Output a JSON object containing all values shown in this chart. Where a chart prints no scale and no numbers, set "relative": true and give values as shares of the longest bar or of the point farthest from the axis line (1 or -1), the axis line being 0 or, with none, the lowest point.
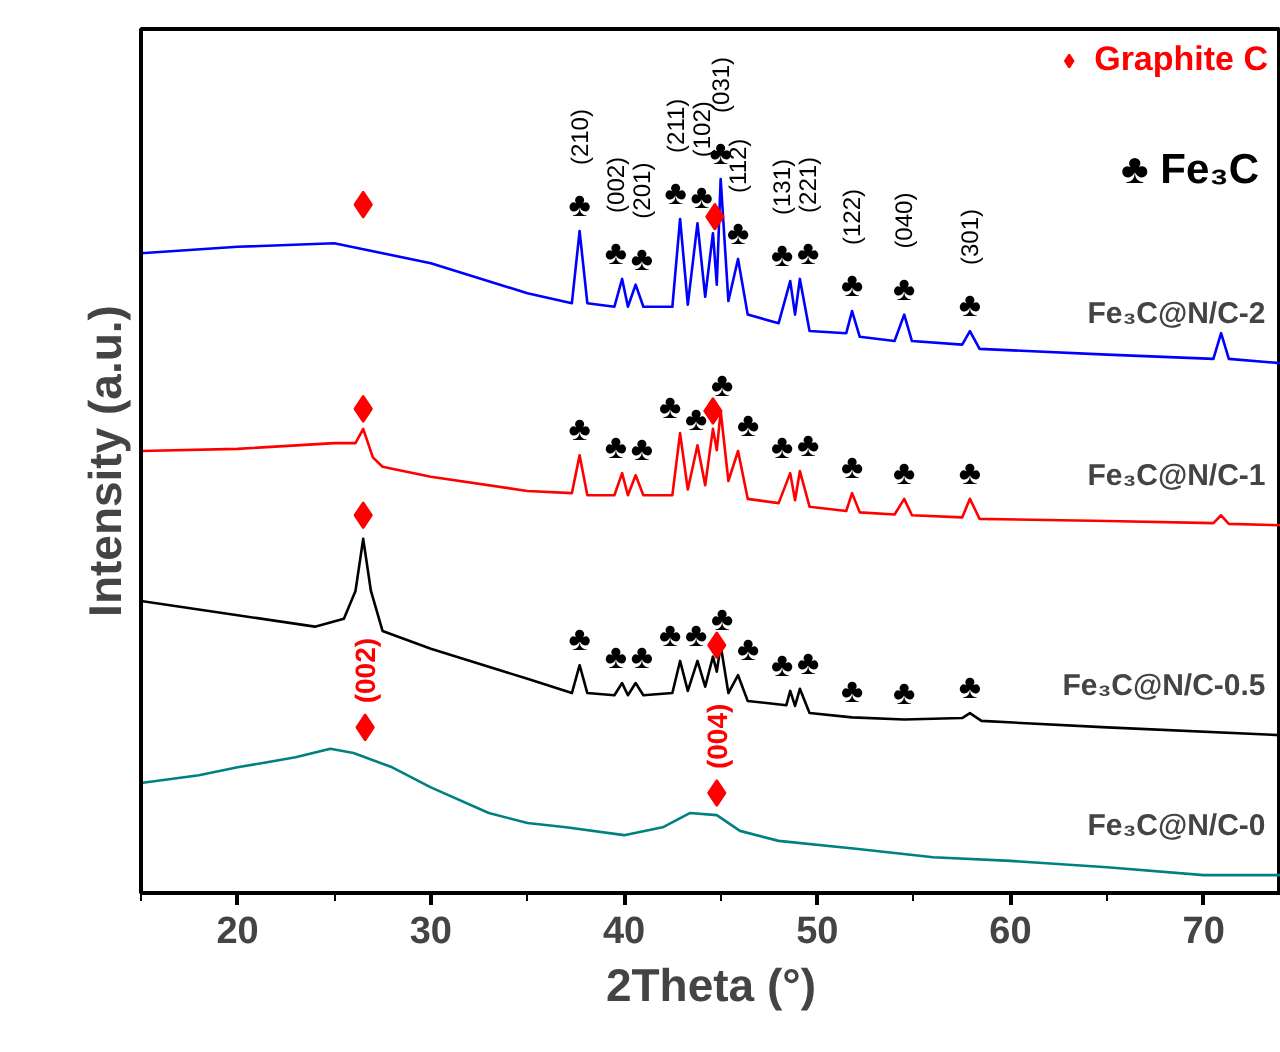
{
  "chart_data": {
    "type": "line",
    "relative": true,
    "xlabel": "2Theta (°)",
    "ylabel": "Intensity (a.u.)",
    "xlim": [
      15,
      74
    ],
    "xticks": [
      20,
      30,
      40,
      50,
      60,
      70
    ],
    "grid": false,
    "legend": "top right",
    "marker": "none",
    "series": [
      {
        "name": "Fe₃C@N/C-2",
        "color": "#0000ff",
        "x": [
          15,
          20,
          25,
          30,
          35,
          37.3,
          37.7,
          38.1,
          39.5,
          39.9,
          40.2,
          40.6,
          41,
          42.5,
          42.9,
          43.3,
          43.8,
          44.2,
          44.6,
          44.8,
          45.0,
          45.4,
          45.9,
          46.4,
          48,
          48.6,
          48.85,
          49.1,
          49.6,
          51.5,
          51.8,
          52.2,
          54,
          54.5,
          54.9,
          57.5,
          57.9,
          58.4,
          65,
          70.5,
          70.9,
          71.3,
          74
        ],
        "values": [
          0.896,
          0.905,
          0.91,
          0.882,
          0.84,
          0.826,
          0.927,
          0.826,
          0.821,
          0.86,
          0.821,
          0.852,
          0.821,
          0.821,
          0.944,
          0.824,
          0.938,
          0.835,
          0.924,
          0.852,
          1.0,
          0.829,
          0.888,
          0.81,
          0.798,
          0.857,
          0.81,
          0.86,
          0.787,
          0.784,
          0.815,
          0.779,
          0.773,
          0.81,
          0.773,
          0.768,
          0.787,
          0.762,
          0.754,
          0.748,
          0.784,
          0.748,
          0.742
        ]
      },
      {
        "name": "Fe₃C@N/C-1",
        "color": "#ff0000",
        "x": [
          15,
          20,
          25,
          26.1,
          26.5,
          27.0,
          27.5,
          30,
          35,
          37.3,
          37.7,
          38.1,
          39.5,
          39.9,
          40.2,
          40.6,
          41,
          42.5,
          42.9,
          43.3,
          43.8,
          44.2,
          44.6,
          44.8,
          45.0,
          45.4,
          45.9,
          46.4,
          48,
          48.6,
          48.85,
          49.1,
          49.6,
          51.5,
          51.8,
          52.2,
          54,
          54.5,
          54.9,
          57.5,
          57.9,
          58.4,
          65,
          70.5,
          70.9,
          71.3,
          74
        ],
        "values": [
          0.619,
          0.622,
          0.63,
          0.63,
          0.65,
          0.61,
          0.597,
          0.583,
          0.563,
          0.56,
          0.613,
          0.557,
          0.557,
          0.588,
          0.557,
          0.585,
          0.557,
          0.557,
          0.644,
          0.565,
          0.627,
          0.571,
          0.65,
          0.62,
          0.675,
          0.577,
          0.619,
          0.552,
          0.546,
          0.588,
          0.55,
          0.591,
          0.541,
          0.535,
          0.56,
          0.533,
          0.53,
          0.552,
          0.529,
          0.526,
          0.552,
          0.524,
          0.521,
          0.518,
          0.529,
          0.517,
          0.515
        ]
      },
      {
        "name": "Fe₃C@N/C-0.5",
        "color": "#000000",
        "x": [
          15,
          20,
          24,
          25.5,
          26.1,
          26.5,
          26.9,
          27.5,
          30,
          35,
          37.3,
          37.7,
          38.1,
          39.5,
          39.9,
          40.2,
          40.6,
          41,
          42.5,
          42.9,
          43.3,
          43.8,
          44.2,
          44.6,
          44.8,
          45.0,
          45.4,
          45.9,
          46.4,
          48.4,
          48.6,
          48.85,
          49.1,
          49.6,
          51.8,
          54.5,
          57.5,
          57.9,
          58.5,
          65,
          74
        ],
        "values": [
          0.409,
          0.389,
          0.373,
          0.384,
          0.423,
          0.496,
          0.423,
          0.367,
          0.342,
          0.3,
          0.28,
          0.319,
          0.28,
          0.277,
          0.294,
          0.277,
          0.294,
          0.277,
          0.28,
          0.325,
          0.283,
          0.325,
          0.289,
          0.331,
          0.31,
          0.347,
          0.28,
          0.305,
          0.269,
          0.263,
          0.283,
          0.262,
          0.286,
          0.252,
          0.246,
          0.243,
          0.245,
          0.252,
          0.241,
          0.232,
          0.221
        ]
      },
      {
        "name": "Fe₃C@N/C-0",
        "color": "#008080",
        "x": [
          15,
          18,
          20,
          23,
          24.8,
          26,
          28,
          30,
          33,
          35,
          37,
          40,
          42,
          43.4,
          44.8,
          46,
          48,
          52,
          56,
          60,
          65,
          70,
          74
        ],
        "values": [
          0.154,
          0.165,
          0.176,
          0.19,
          0.202,
          0.196,
          0.176,
          0.148,
          0.112,
          0.098,
          0.092,
          0.081,
          0.092,
          0.112,
          0.109,
          0.087,
          0.073,
          0.062,
          0.05,
          0.045,
          0.036,
          0.025,
          0.025
        ]
      },
      {
        "name": "Graphite C",
        "type": "scatter",
        "marker": "diamond",
        "color": "#ff0000",
        "x": [
          26.5,
          44.7,
          26.5,
          44.6,
          26.5,
          44.8,
          26.6,
          44.8
        ],
        "values": [
          0.964,
          0.947,
          0.678,
          0.675,
          0.529,
          0.347,
          0.232,
          0.14
        ]
      }
    ],
    "annotations": [
      "♣ Fe₃C",
      {
        "text": "♣",
        "x": 37.7,
        "y": 0.927
      },
      {
        "text": "♣",
        "x": 39.9,
        "y": 0.86
      },
      {
        "text": "♣",
        "x": 40.6,
        "y": 0.852
      },
      {
        "text": "♣",
        "x": 42.9,
        "y": 0.944
      },
      {
        "text": "♣",
        "x": 43.8,
        "y": 0.938
      },
      {
        "text": "♣",
        "x": 45.0,
        "y": 1.0
      },
      {
        "text": "♣",
        "x": 45.9,
        "y": 0.888
      },
      {
        "text": "♣",
        "x": 48.6,
        "y": 0.857
      },
      {
        "text": "♣",
        "x": 49.1,
        "y": 0.86
      },
      {
        "text": "♣",
        "x": 51.8,
        "y": 0.815
      },
      {
        "text": "♣",
        "x": 54.5,
        "y": 0.81
      },
      {
        "text": "♣",
        "x": 57.9,
        "y": 0.787
      },
      {
        "text": "(210)",
        "x": 37.7,
        "y": 0.927
      },
      {
        "text": "(002)",
        "x": 39.9,
        "y": 0.86
      },
      {
        "text": "(201)",
        "x": 40.6,
        "y": 0.852
      },
      {
        "text": "(211)",
        "x": 42.9,
        "y": 0.944
      },
      {
        "text": "(102)",
        "x": 43.8,
        "y": 0.938
      },
      {
        "text": "(031)",
        "x": 45.0,
        "y": 1.0
      },
      {
        "text": "(112)",
        "x": 45.9,
        "y": 0.888
      },
      {
        "text": "(131)",
        "x": 48.6,
        "y": 0.857
      },
      {
        "text": "(221)",
        "x": 49.1,
        "y": 0.86
      },
      {
        "text": "(122)",
        "x": 51.8,
        "y": 0.815
      },
      {
        "text": "(040)",
        "x": 54.5,
        "y": 0.81
      },
      {
        "text": "(301)",
        "x": 57.9,
        "y": 0.787
      },
      {
        "text": "♣",
        "x": 37.7,
        "y": 0.613
      },
      {
        "text": "♣",
        "x": 39.9,
        "y": 0.588
      },
      {
        "text": "♣",
        "x": 40.6,
        "y": 0.585
      },
      {
        "text": "♣",
        "x": 42.9,
        "y": 0.644
      },
      {
        "text": "♣",
        "x": 43.8,
        "y": 0.627
      },
      {
        "text": "♣",
        "x": 45.0,
        "y": 0.675
      },
      {
        "text": "♣",
        "x": 45.9,
        "y": 0.619
      },
      {
        "text": "♣",
        "x": 48.6,
        "y": 0.588
      },
      {
        "text": "♣",
        "x": 49.1,
        "y": 0.591
      },
      {
        "text": "♣",
        "x": 51.8,
        "y": 0.56
      },
      {
        "text": "♣",
        "x": 54.5,
        "y": 0.552
      },
      {
        "text": "♣",
        "x": 57.9,
        "y": 0.552
      },
      {
        "text": "♣",
        "x": 37.7,
        "y": 0.319
      },
      {
        "text": "♣",
        "x": 39.9,
        "y": 0.294
      },
      {
        "text": "♣",
        "x": 40.6,
        "y": 0.294
      },
      {
        "text": "♣",
        "x": 42.9,
        "y": 0.325
      },
      {
        "text": "♣",
        "x": 43.8,
        "y": 0.325
      },
      {
        "text": "♣",
        "x": 45.0,
        "y": 0.347
      },
      {
        "text": "♣",
        "x": 45.9,
        "y": 0.305
      },
      {
        "text": "♣",
        "x": 48.6,
        "y": 0.283
      },
      {
        "text": "♣",
        "x": 49.1,
        "y": 0.286
      },
      {
        "text": "♣",
        "x": 51.8,
        "y": 0.246
      },
      {
        "text": "♣",
        "x": 54.5,
        "y": 0.243
      },
      {
        "text": "♣",
        "x": 57.9,
        "y": 0.252
      },
      {
        "text": "(002)",
        "x": 26.6,
        "y": 0.232
      },
      {
        "text": "(004)",
        "x": 44.8,
        "y": 0.14
      }
    ]
  }
}
